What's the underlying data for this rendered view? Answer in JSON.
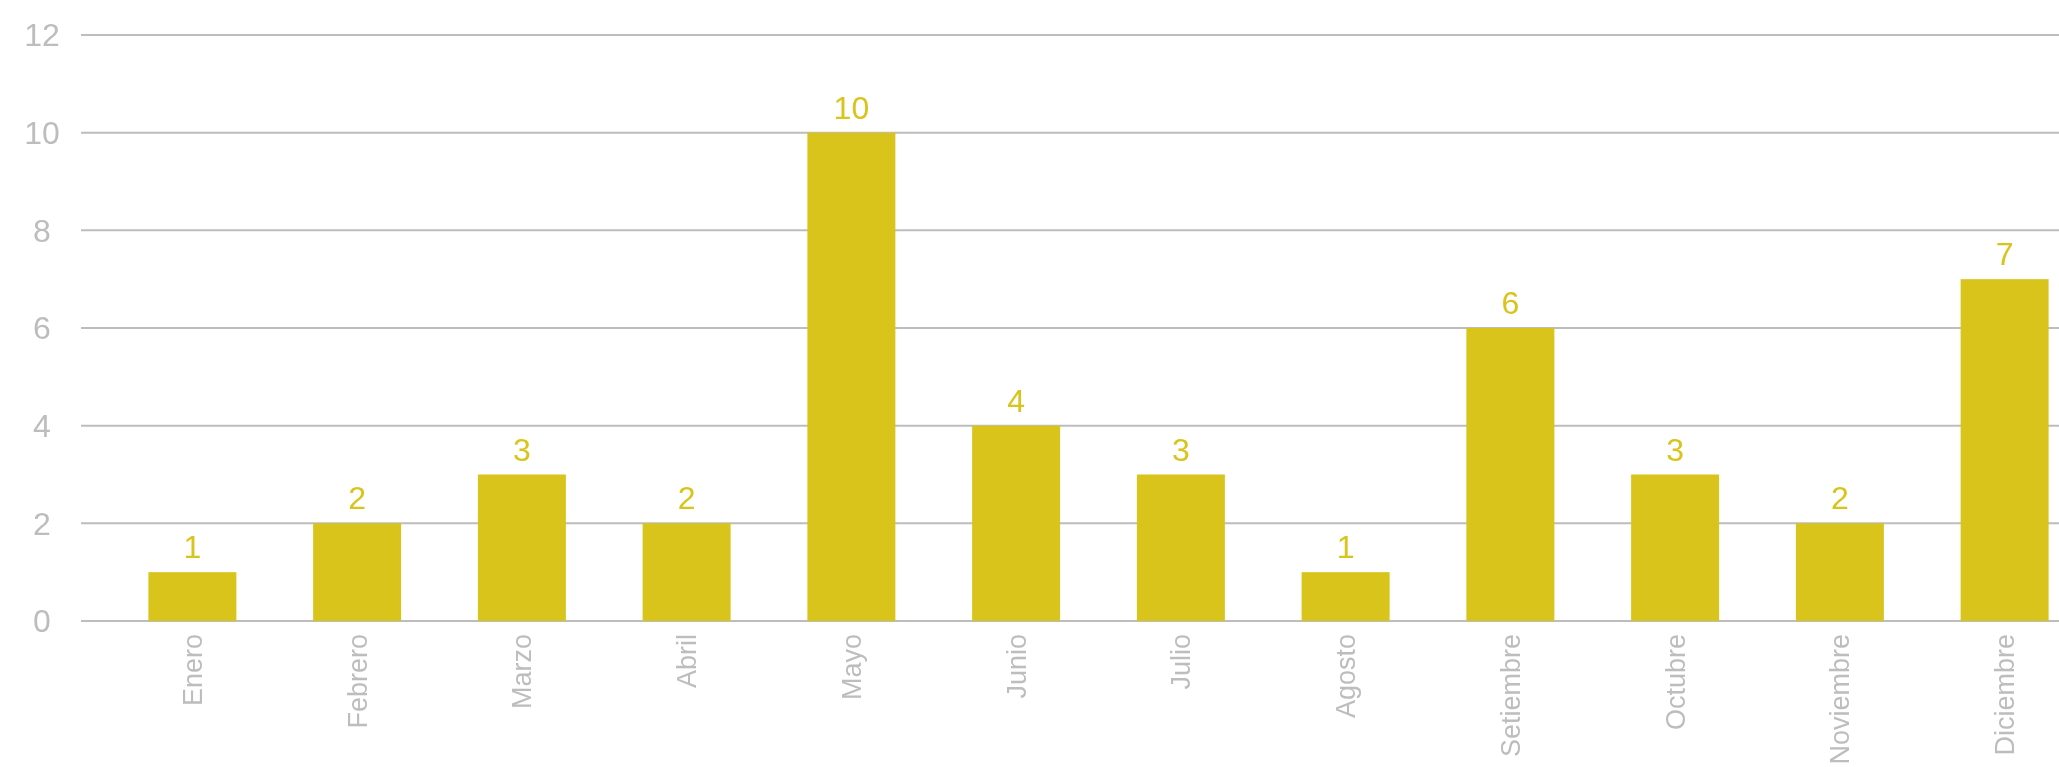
{
  "chart_data": {
    "type": "bar",
    "categories": [
      "Enero",
      "Febrero",
      "Marzo",
      "Abril",
      "Mayo",
      "Junio",
      "Julio",
      "Agosto",
      "Setiembre",
      "Octubre",
      "Noviembre",
      "Diciembre"
    ],
    "values": [
      1,
      2,
      3,
      2,
      10,
      4,
      3,
      1,
      6,
      3,
      2,
      7
    ],
    "color": "#d8c41a",
    "ylim": [
      0,
      12
    ],
    "yticks": [
      0,
      2,
      4,
      6,
      8,
      10,
      12
    ],
    "grid": "y",
    "data_labels": true
  }
}
